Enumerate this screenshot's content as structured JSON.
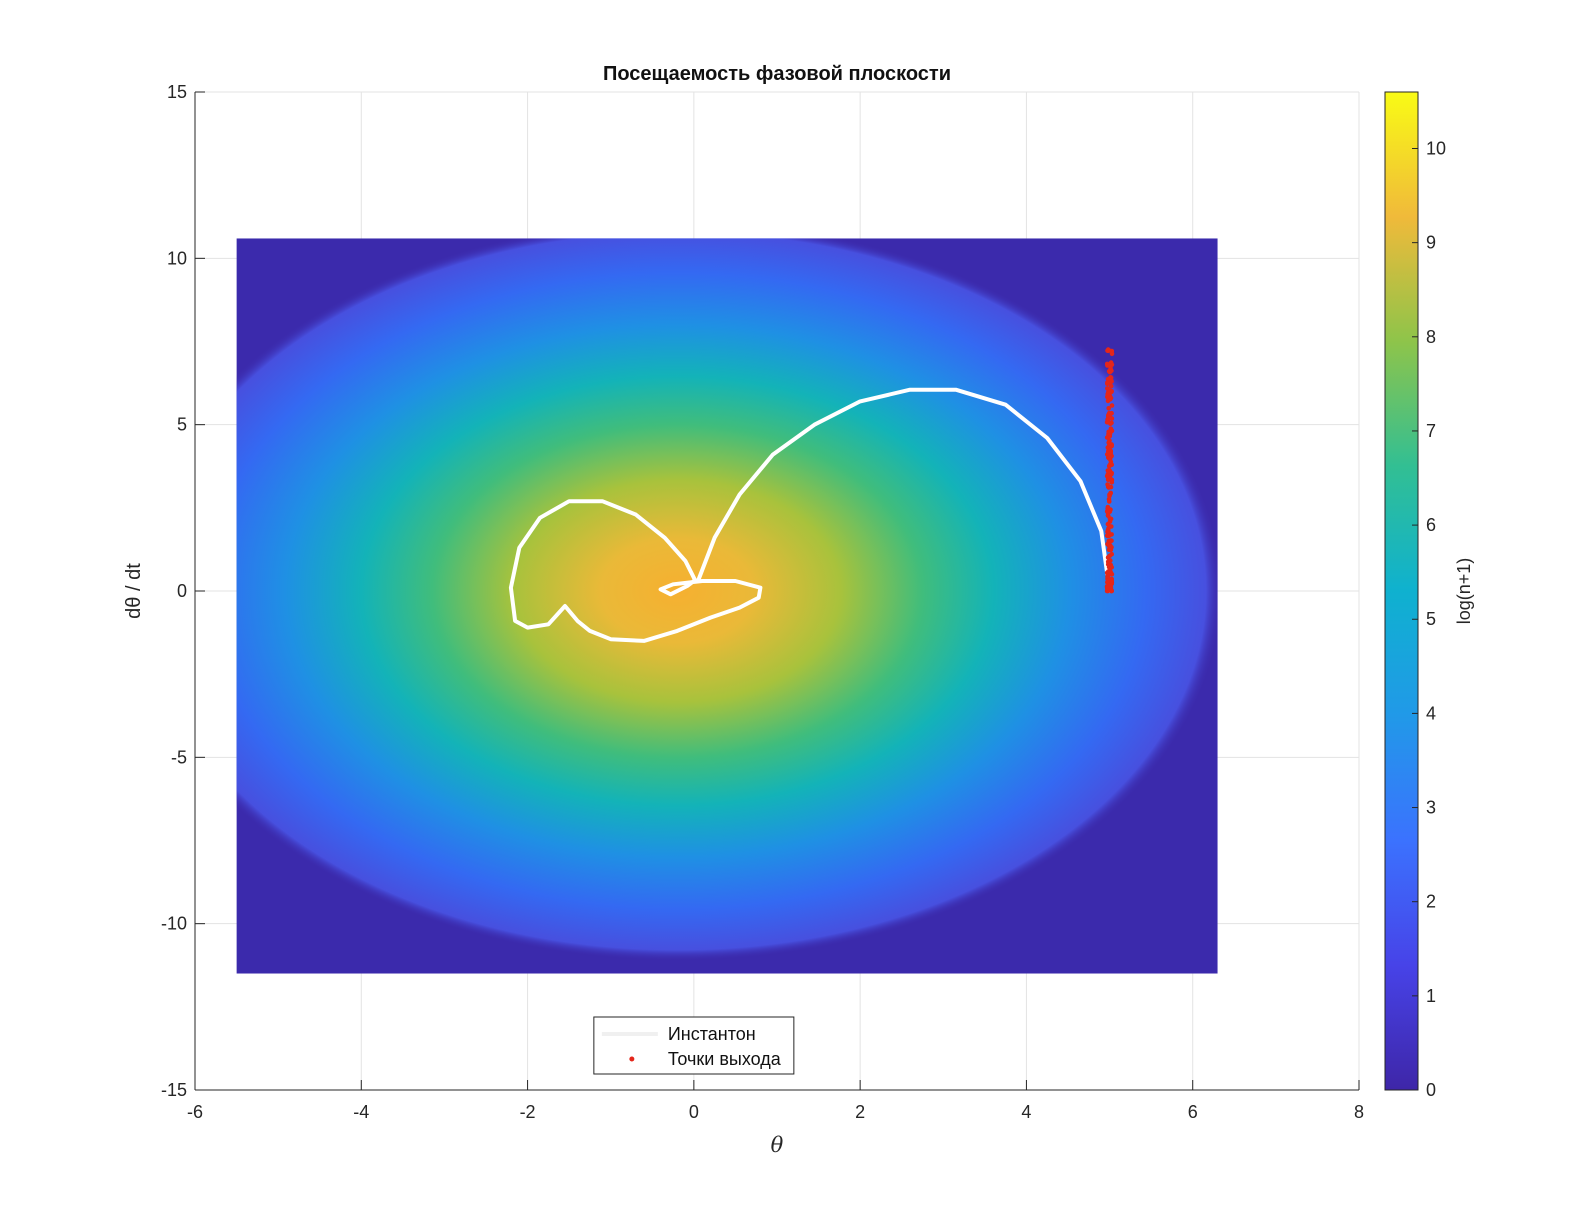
{
  "chart_data": {
    "type": "heatmap",
    "title": "Посещаемость фазовой плоскости",
    "xlabel": "θ",
    "ylabel": "dθ / dt",
    "xlim": [
      -6,
      8
    ],
    "ylim": [
      -15,
      15
    ],
    "xticks": [
      "-6",
      "-4",
      "-2",
      "0",
      "2",
      "4",
      "6",
      "8"
    ],
    "yticks": [
      "15",
      "10",
      "5",
      "0",
      "-5",
      "-10",
      "-15"
    ],
    "grid": true,
    "heatmap": {
      "x_range": [
        -5.5,
        6.3
      ],
      "y_range": [
        -11.5,
        10.6
      ],
      "peak_center": [
        -0.2,
        0
      ],
      "max_value": 10.6
    },
    "colorbar": {
      "label": "log(n+1)",
      "range": [
        0,
        10.6
      ],
      "ticks": [
        "0",
        "1",
        "2",
        "3",
        "4",
        "5",
        "6",
        "7",
        "8",
        "9",
        "10"
      ]
    },
    "series": [
      {
        "name": "Инстантон",
        "type": "line",
        "color": "#ffffff",
        "x": [
          0.0,
          -0.08,
          -0.28,
          -0.4,
          -0.25,
          0.1,
          0.5,
          0.8,
          0.78,
          0.55,
          0.2,
          -0.2,
          -0.6,
          -1.0,
          -1.25,
          -1.4,
          -1.55,
          -1.75,
          -2.0,
          -2.15,
          -2.2,
          -2.1,
          -1.85,
          -1.5,
          -1.1,
          -0.7,
          -0.35,
          -0.1,
          0.02,
          0.05,
          0.25,
          0.55,
          0.95,
          1.45,
          2.0,
          2.6,
          3.15,
          3.75,
          4.25,
          4.65,
          4.9,
          5.0
        ],
        "y": [
          0.3,
          0.15,
          -0.1,
          0.05,
          0.2,
          0.3,
          0.3,
          0.1,
          -0.2,
          -0.5,
          -0.8,
          -1.2,
          -1.5,
          -1.45,
          -1.2,
          -0.9,
          -0.45,
          -1.0,
          -1.1,
          -0.9,
          0.1,
          1.3,
          2.2,
          2.7,
          2.7,
          2.3,
          1.6,
          0.9,
          0.3,
          0.3,
          1.6,
          2.9,
          4.1,
          5.0,
          5.7,
          6.05,
          6.05,
          5.6,
          4.6,
          3.3,
          1.8,
          0.0
        ]
      },
      {
        "name": "Точки выхода",
        "type": "scatter",
        "color": "#e4261a",
        "x_center": 5.0,
        "y_range": [
          0,
          7.3
        ]
      }
    ],
    "legend_position": "bottom-center"
  }
}
